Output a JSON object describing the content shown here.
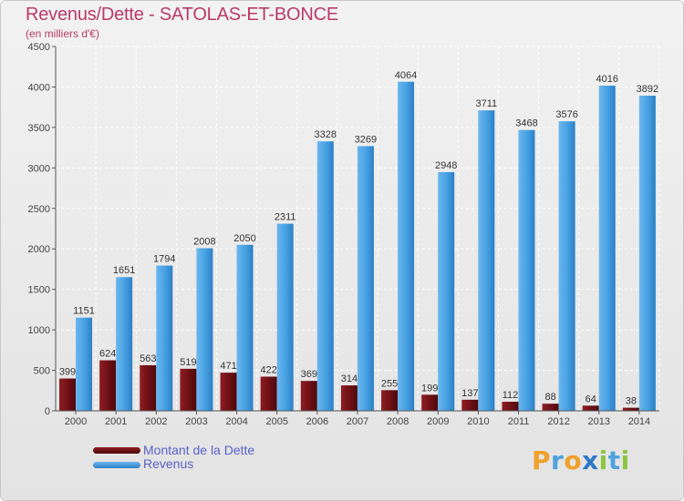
{
  "title": "Revenus/Dette - SATOLAS-ET-BONCE",
  "subtitle": "(en milliers d'€)",
  "colors": {
    "dette": "#6b0f13",
    "revenus": "#3d93d8",
    "title": "#b93a68"
  },
  "legend": [
    {
      "label": "Montant de la Dette",
      "color": "#6b0f13"
    },
    {
      "label": "Revenus",
      "color": "#3d93d8"
    }
  ],
  "logo": {
    "text": "Proxiti"
  },
  "chart_data": {
    "type": "bar",
    "categories": [
      "2000",
      "2001",
      "2002",
      "2003",
      "2004",
      "2005",
      "2006",
      "2007",
      "2008",
      "2009",
      "2010",
      "2011",
      "2012",
      "2013",
      "2014"
    ],
    "series": [
      {
        "name": "Montant de la Dette",
        "values": [
          399,
          624,
          563,
          519,
          471,
          422,
          369,
          314,
          255,
          199,
          137,
          112,
          88,
          64,
          38
        ]
      },
      {
        "name": "Revenus",
        "values": [
          1151,
          1651,
          1794,
          2008,
          2050,
          2311,
          3328,
          3269,
          4064,
          2948,
          3711,
          3468,
          3576,
          4016,
          3892
        ]
      }
    ],
    "ylim": [
      0,
      4500
    ],
    "yticks": [
      0,
      500,
      1000,
      1500,
      2000,
      2500,
      3000,
      3500,
      4000,
      4500
    ],
    "grid": true,
    "legend_position": "bottom-left"
  }
}
